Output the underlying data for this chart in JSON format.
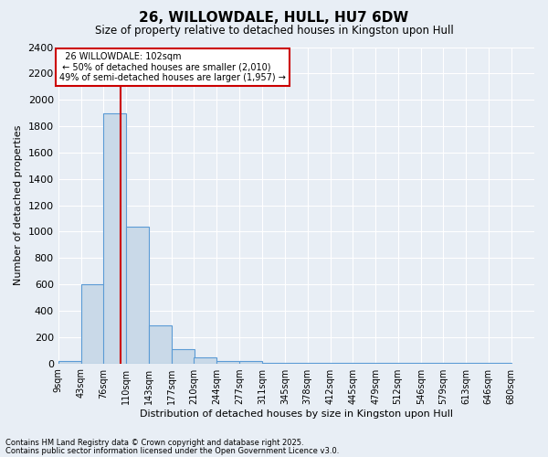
{
  "title": "26, WILLOWDALE, HULL, HU7 6DW",
  "subtitle": "Size of property relative to detached houses in Kingston upon Hull",
  "xlabel": "Distribution of detached houses by size in Kingston upon Hull",
  "ylabel": "Number of detached properties",
  "footer_line1": "Contains HM Land Registry data © Crown copyright and database right 2025.",
  "footer_line2": "Contains public sector information licensed under the Open Government Licence v3.0.",
  "bins": [
    9,
    43,
    76,
    110,
    143,
    177,
    210,
    244,
    277,
    311,
    345,
    378,
    412,
    445,
    479,
    512,
    546,
    579,
    613,
    646,
    680
  ],
  "bar_values": [
    20,
    600,
    1900,
    1040,
    290,
    110,
    45,
    20,
    20,
    5,
    5,
    2,
    2,
    2,
    2,
    2,
    2,
    2,
    2,
    2
  ],
  "bar_color": "#c9d9e8",
  "bar_edge_color": "#5b9bd5",
  "red_line_x": 102,
  "annotation_title": "26 WILLOWDALE: 102sqm",
  "annotation_line1": "← 50% of detached houses are smaller (2,010)",
  "annotation_line2": "49% of semi-detached houses are larger (1,957) →",
  "annotation_box_edge_color": "#cc0000",
  "red_line_color": "#cc0000",
  "ylim": [
    0,
    2400
  ],
  "yticks": [
    0,
    200,
    400,
    600,
    800,
    1000,
    1200,
    1400,
    1600,
    1800,
    2000,
    2200,
    2400
  ],
  "background_color": "#e8eef5",
  "tick_labels": [
    "9sqm",
    "43sqm",
    "76sqm",
    "110sqm",
    "143sqm",
    "177sqm",
    "210sqm",
    "244sqm",
    "277sqm",
    "311sqm",
    "345sqm",
    "378sqm",
    "412sqm",
    "445sqm",
    "479sqm",
    "512sqm",
    "546sqm",
    "579sqm",
    "613sqm",
    "646sqm",
    "680sqm"
  ]
}
